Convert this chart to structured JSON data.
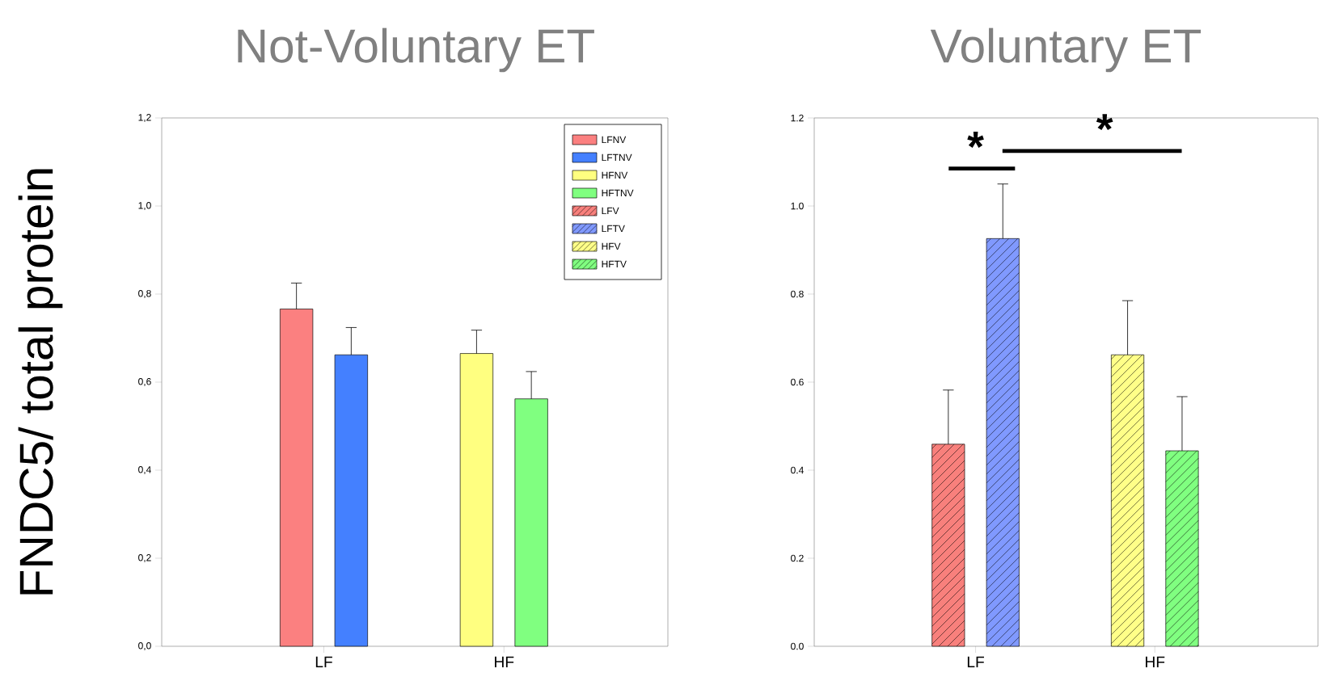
{
  "chart_data": [
    {
      "type": "bar",
      "title": "Not-Voluntary ET",
      "ylabel": "FNDC5/ total protein",
      "categories": [
        "LF",
        "HF"
      ],
      "ylim": [
        0,
        1.2
      ],
      "yticks": [
        {
          "value": 0,
          "label": "0,0"
        },
        {
          "value": 0.2,
          "label": "0,2"
        },
        {
          "value": 0.4,
          "label": "0,4"
        },
        {
          "value": 0.6,
          "label": "0,6"
        },
        {
          "value": 0.8,
          "label": "0,8"
        },
        {
          "value": 1.0,
          "label": "1,0"
        },
        {
          "value": 1.2,
          "label": "1,2"
        }
      ],
      "legend": "top right",
      "series": [
        {
          "name": "LFNV",
          "color": "#fb8080",
          "values": [
            0.766,
            null
          ],
          "errors": [
            [
              0.766,
              0.825
            ],
            null
          ]
        },
        {
          "name": "LFTNV",
          "color": "#4480ff",
          "values": [
            0.662,
            null
          ],
          "errors": [
            [
              0.662,
              0.724
            ],
            null
          ]
        },
        {
          "name": "HFNV",
          "color": "#ffff80",
          "values": [
            null,
            0.665
          ],
          "errors": [
            null,
            [
              0.665,
              0.718
            ]
          ]
        },
        {
          "name": "HFTNV",
          "color": "#80ff80",
          "values": [
            null,
            0.562
          ],
          "errors": [
            null,
            [
              0.562,
              0.624
            ]
          ]
        }
      ]
    },
    {
      "type": "bar",
      "title": "Voluntary ET",
      "categories": [
        "LF",
        "HF"
      ],
      "ylim": [
        0,
        1.2
      ],
      "yticks": [
        {
          "value": 0,
          "label": "0.0"
        },
        {
          "value": 0.2,
          "label": "0.2"
        },
        {
          "value": 0.4,
          "label": "0.4"
        },
        {
          "value": 0.6,
          "label": "0.6"
        },
        {
          "value": 0.8,
          "label": "0.8"
        },
        {
          "value": 1.0,
          "label": "1.0"
        },
        {
          "value": 1.2,
          "label": "1.2"
        }
      ],
      "legend": "left",
      "annotations": [
        "*",
        "*"
      ],
      "series": [
        {
          "name": "LFV",
          "color": "#f8807c",
          "values": [
            0.459,
            null
          ],
          "errors": [
            [
              0.459,
              0.582
            ],
            null
          ]
        },
        {
          "name": "LFTV",
          "color": "#8099ff",
          "values": [
            0.926,
            null
          ],
          "errors": [
            [
              0.926,
              1.05
            ],
            null
          ]
        },
        {
          "name": "HFV",
          "color": "#ffff88",
          "values": [
            null,
            0.662
          ],
          "errors": [
            null,
            [
              0.662,
              0.785
            ]
          ]
        },
        {
          "name": "HFTV",
          "color": "#80ff80",
          "values": [
            null,
            0.444
          ],
          "errors": [
            null,
            [
              0.444,
              0.567
            ]
          ]
        }
      ]
    }
  ]
}
